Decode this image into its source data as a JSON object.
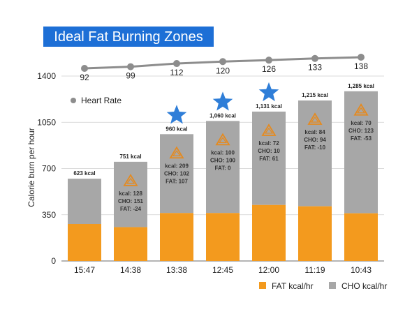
{
  "chart_data": {
    "type": "bar",
    "stacked": true,
    "title": "Ideal Fat Burning Zones",
    "ylabel": "Calorie burn per hour",
    "ylim": [
      0,
      1400
    ],
    "yticks": [
      0,
      350,
      700,
      1050,
      1400
    ],
    "categories": [
      "15:47",
      "14:38",
      "13:38",
      "12:45",
      "12:00",
      "11:19",
      "10:43"
    ],
    "series": [
      {
        "name": "FAT kcal/hr",
        "color": "#f39a1e",
        "values": [
          280,
          256,
          363,
          363,
          424,
          414,
          361
        ]
      },
      {
        "name": "CHO kcal/hr",
        "color": "#a7a7a7",
        "values": [
          343,
          495,
          597,
          697,
          707,
          801,
          924
        ]
      }
    ],
    "totals_labels": [
      "623 kcal",
      "751 kcal",
      "960 kcal",
      "1,060 kcal",
      "1,131 kcal",
      "1,215 kcal",
      "1,285 kcal"
    ],
    "totals": [
      623,
      751,
      960,
      1060,
      1131,
      1215,
      1285
    ],
    "star_categories": [
      "13:38",
      "12:45",
      "12:00"
    ],
    "star_color": "#2f7ed8",
    "triangle_color": "#e58a1f",
    "deltas": [
      null,
      {
        "kcal": "kcal: 128",
        "cho": "CHO: 151",
        "fat": "FAT: -24"
      },
      {
        "kcal": "kcal: 209",
        "cho": "CHO: 102",
        "fat": "FAT: 107"
      },
      {
        "kcal": "kcal: 100",
        "cho": "CHO: 100",
        "fat": "FAT: 0"
      },
      {
        "kcal": "kcal: 72",
        "cho": "CHO: 10",
        "fat": "FAT: 61"
      },
      {
        "kcal": "kcal: 84",
        "cho": "CHO: 94",
        "fat": "FAT: -10"
      },
      {
        "kcal": "kcal: 70",
        "cho": "CHO: 123",
        "fat": "FAT: -53"
      }
    ],
    "heart_rate": {
      "name": "Heart Rate",
      "color": "#8d8d8d",
      "values": [
        92,
        99,
        112,
        120,
        126,
        133,
        138
      ]
    },
    "legend_position": "bottom-right"
  }
}
